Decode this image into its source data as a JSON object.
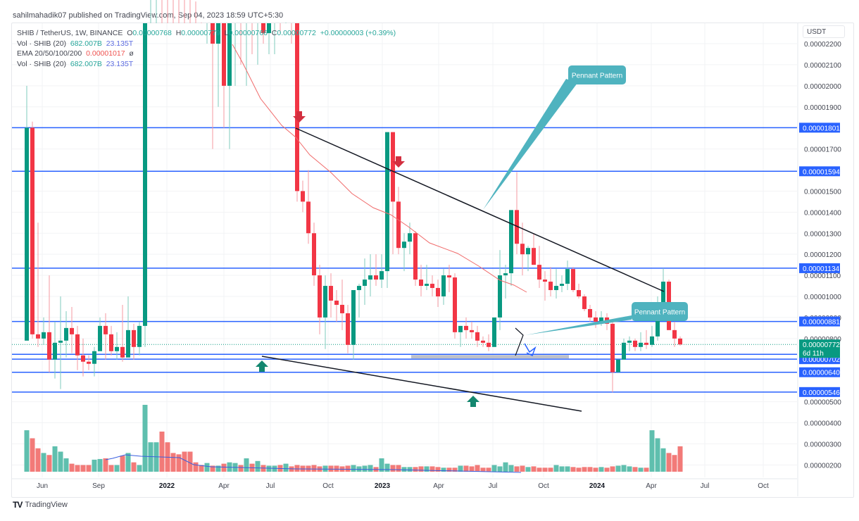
{
  "header": {
    "publisher_line": "sahilmahadik07 published on TradingView.com, Sep 04, 2023 18:59 UTC+5:30"
  },
  "legend": {
    "symbol": "SHIB / TetherUS, 1W, BINANCE",
    "open_label": "O",
    "open": "0.00000768",
    "high_label": "H",
    "high": "0.00000779",
    "low_label": "L",
    "low": "0.00000766",
    "close_label": "C",
    "close": "0.00000772",
    "change": "+0.00000003 (+0.39%)",
    "vol1_label": "Vol · SHIB (20)",
    "vol1_a": "682.007B",
    "vol1_b": "23.135T",
    "ema_label": "EMA 20/50/100/200",
    "ema_value": "0.00001017",
    "ema_extra": "ø",
    "vol2_label": "Vol · SHIB (20)",
    "vol2_a": "682.007B",
    "vol2_b": "23.135T"
  },
  "currency_button": "USDT",
  "footer": {
    "brand": "TradingView",
    "logo": "TV"
  },
  "colors": {
    "up": "#089981",
    "down": "#f23645",
    "level_line": "#2962ff",
    "ema": "#f06b6b",
    "vol_up": "#5fbfae",
    "vol_down": "#f27a78",
    "vol_ma": "#3a5fe0",
    "callout": "#4fb3bf",
    "arrow_down": "#d32f3f",
    "arrow_up": "#14876f",
    "zone": "#b2b5be"
  },
  "chart_data": {
    "type": "candlestick",
    "title": "SHIB / TetherUS, 1W, BINANCE",
    "xlabel": "",
    "ylabel": "USDT",
    "x_ticks": [
      "Jun",
      "Sep",
      "2022",
      "Apr",
      "Jul",
      "Oct",
      "2023",
      "Apr",
      "Jul",
      "Oct",
      "2024",
      "Apr",
      "Jul",
      "Oct"
    ],
    "y_ticks": [
      "0.00002200",
      "0.00002100",
      "0.00002000",
      "0.00001900",
      "0.00001700",
      "0.00001500",
      "0.00001400",
      "0.00001300",
      "0.00001200",
      "0.00001100",
      "0.00001000",
      "0.00000900",
      "0.00000800",
      "0.00000500",
      "0.00000400",
      "0.00000300",
      "0.00000200"
    ],
    "ylim": [
      1.5e-06,
      2.27e-05
    ],
    "grid": true,
    "horizontal_levels": [
      {
        "price": "0.00001801",
        "label": "0.00001801"
      },
      {
        "price": "0.00001594",
        "label": "0.00001594"
      },
      {
        "price": "0.00001134",
        "label": "0.00001134"
      },
      {
        "price": "0.00000881",
        "label": "0.00000881"
      },
      {
        "price": "0.00000725",
        "label": "0.00000725"
      },
      {
        "price": "0.00000702",
        "label": "0.00000702"
      },
      {
        "price": "0.00000640",
        "label": "0.00000640"
      },
      {
        "price": "0.00000546",
        "label": "0.00000546"
      }
    ],
    "last_price": {
      "price": "0.00000772",
      "countdown": "6d 11h"
    },
    "annotations": [
      {
        "type": "callout",
        "text": "Pennant Pattern",
        "position": "upper"
      },
      {
        "type": "callout",
        "text": "Pennant Pattern",
        "position": "lower-right"
      },
      {
        "type": "trendline",
        "name": "upper-resistance",
        "from": "Aug 2022 high ~0.0000180",
        "to": "Nov 2023 ~0.0000103"
      },
      {
        "type": "trendline",
        "name": "lower-support",
        "from": "Jun 2022 low ~0.0000073",
        "to": "Nov 2023 ~0.0000047"
      },
      {
        "type": "arrow-down",
        "at": "Aug 2022 high"
      },
      {
        "type": "arrow-down",
        "at": "Feb 2023 high"
      },
      {
        "type": "arrow-up",
        "at": "Jun 2022 low"
      },
      {
        "type": "arrow-up",
        "at": "Jun 2023 low"
      },
      {
        "type": "zone",
        "range": [
          "0.00000702",
          "0.00000725"
        ]
      }
    ],
    "series": [
      {
        "name": "EMA 20",
        "value_last": "0.00001017"
      },
      {
        "name": "Vol · SHIB (20)",
        "value_last": "682.007B",
        "ma_last": "23.135T"
      }
    ]
  }
}
